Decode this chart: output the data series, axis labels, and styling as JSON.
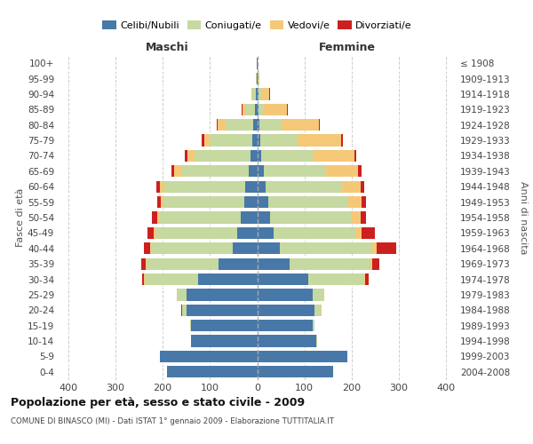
{
  "age_groups": [
    "0-4",
    "5-9",
    "10-14",
    "15-19",
    "20-24",
    "25-29",
    "30-34",
    "35-39",
    "40-44",
    "45-49",
    "50-54",
    "55-59",
    "60-64",
    "65-69",
    "70-74",
    "75-79",
    "80-84",
    "85-89",
    "90-94",
    "95-99",
    "100+"
  ],
  "birth_years": [
    "2004-2008",
    "1999-2003",
    "1994-1998",
    "1989-1993",
    "1984-1988",
    "1979-1983",
    "1974-1978",
    "1969-1973",
    "1964-1968",
    "1959-1963",
    "1954-1958",
    "1949-1953",
    "1944-1948",
    "1939-1943",
    "1934-1938",
    "1929-1933",
    "1924-1928",
    "1919-1923",
    "1914-1918",
    "1909-1913",
    "≤ 1908"
  ],
  "males_celibi": [
    190,
    205,
    140,
    140,
    150,
    150,
    125,
    82,
    52,
    42,
    35,
    28,
    25,
    18,
    15,
    10,
    8,
    5,
    3,
    1,
    1
  ],
  "males_coniugati": [
    0,
    0,
    0,
    2,
    8,
    18,
    112,
    152,
    170,
    172,
    172,
    170,
    172,
    140,
    118,
    90,
    58,
    18,
    8,
    2,
    0
  ],
  "males_vedovi": [
    0,
    0,
    0,
    0,
    1,
    2,
    2,
    2,
    4,
    4,
    5,
    5,
    8,
    18,
    15,
    12,
    18,
    8,
    2,
    0,
    0
  ],
  "males_divorziati": [
    0,
    0,
    0,
    0,
    1,
    1,
    4,
    9,
    14,
    14,
    10,
    8,
    8,
    5,
    5,
    5,
    2,
    2,
    0,
    0,
    0
  ],
  "females_nubili": [
    160,
    190,
    125,
    118,
    122,
    118,
    108,
    68,
    48,
    35,
    28,
    23,
    18,
    14,
    9,
    7,
    4,
    3,
    3,
    1,
    0
  ],
  "females_coniugate": [
    0,
    0,
    1,
    4,
    13,
    22,
    118,
    172,
    195,
    172,
    172,
    170,
    162,
    132,
    108,
    78,
    48,
    12,
    5,
    2,
    0
  ],
  "females_vedove": [
    0,
    0,
    0,
    0,
    1,
    1,
    2,
    4,
    9,
    14,
    18,
    28,
    38,
    68,
    88,
    92,
    78,
    48,
    18,
    2,
    0
  ],
  "females_divorziate": [
    0,
    0,
    0,
    0,
    0,
    1,
    8,
    14,
    42,
    28,
    13,
    9,
    9,
    7,
    4,
    4,
    2,
    2,
    2,
    0,
    0
  ],
  "color_celibi": "#4878a8",
  "color_coniugati": "#c5d9a0",
  "color_vedovi": "#f5c878",
  "color_divorziati": "#cc2020",
  "title": "Popolazione per età, sesso e stato civile - 2009",
  "subtitle": "COMUNE DI BINASCO (MI) - Dati ISTAT 1° gennaio 2009 - Elaborazione TUTTITALIA.IT",
  "xlabel_left": "Maschi",
  "xlabel_right": "Femmine",
  "ylabel_left": "Fasce di età",
  "ylabel_right": "Anni di nascita",
  "xlim": 420,
  "background_color": "#ffffff",
  "grid_color": "#cccccc"
}
